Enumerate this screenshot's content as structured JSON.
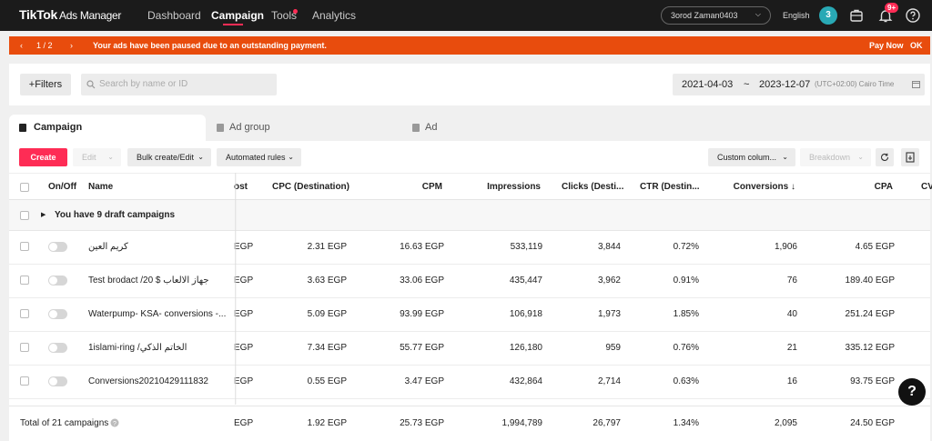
{
  "nav": {
    "logo": "TikTok",
    "logo_sub": "Ads Manager",
    "links": [
      "Dashboard",
      "Campaign",
      "Tools",
      "Analytics"
    ],
    "account": "3orod Zaman0403",
    "language": "English",
    "avatar_initial": "3",
    "notification_badge": "9+"
  },
  "alert": {
    "pager": "1 / 2",
    "message": "Your ads have been paused due to an outstanding payment.",
    "pay_now": "Pay Now",
    "ok": "OK"
  },
  "filterbar": {
    "filters_label": "Filters",
    "search_placeholder": "Search by name or ID",
    "date_start": "2021-04-03",
    "date_sep": "~",
    "date_end": "2023-12-07",
    "timezone": "(UTC+02:00) Cairo Time"
  },
  "tabs": [
    "Campaign",
    "Ad group",
    "Ad"
  ],
  "toolbar": {
    "create": "Create",
    "edit": "Edit",
    "bulk": "Bulk create/Edit",
    "automated": "Automated rules",
    "custom_columns": "Custom colum...",
    "breakdown": "Breakdown"
  },
  "table": {
    "headers": {
      "onoff": "On/Off",
      "name": "Name",
      "cost": "ost",
      "cpc": "CPC (Destination)",
      "cpm": "CPM",
      "impressions": "Impressions",
      "clicks": "Clicks (Desti...",
      "ctr": "CTR (Destin...",
      "conversions": "Conversions ↓",
      "cpa": "CPA",
      "cv": "CV"
    },
    "draft_text": "You have 9 draft campaigns",
    "rows": [
      {
        "name": "كريم العين",
        "cost": "EGP",
        "cpc": "2.31 EGP",
        "cpm": "16.63 EGP",
        "impressions": "533,119",
        "clicks": "3,844",
        "ctr": "0.72%",
        "conversions": "1,906",
        "cpa": "4.65 EGP"
      },
      {
        "name": "Test brodact /20 $ جهاز الالعاب",
        "cost": "EGP",
        "cpc": "3.63 EGP",
        "cpm": "33.06 EGP",
        "impressions": "435,447",
        "clicks": "3,962",
        "ctr": "0.91%",
        "conversions": "76",
        "cpa": "189.40 EGP"
      },
      {
        "name": "Waterpump- KSA- conversions -...",
        "cost": "EGP",
        "cpc": "5.09 EGP",
        "cpm": "93.99 EGP",
        "impressions": "106,918",
        "clicks": "1,973",
        "ctr": "1.85%",
        "conversions": "40",
        "cpa": "251.24 EGP"
      },
      {
        "name": "1islami-ring /الخاتم الذكي",
        "cost": "EGP",
        "cpc": "7.34 EGP",
        "cpm": "55.77 EGP",
        "impressions": "126,180",
        "clicks": "959",
        "ctr": "0.76%",
        "conversions": "21",
        "cpa": "335.12 EGP"
      },
      {
        "name": "Conversions20210429111832",
        "cost": "EGP",
        "cpc": "0.55 EGP",
        "cpm": "3.47 EGP",
        "impressions": "432,864",
        "clicks": "2,714",
        "ctr": "0.63%",
        "conversions": "16",
        "cpa": "93.75 EGP"
      }
    ],
    "total": {
      "label": "Total of 21 campaigns",
      "cost": "EGP",
      "cpc": "1.92 EGP",
      "cpm": "25.73 EGP",
      "impressions": "1,994,789",
      "clicks": "26,797",
      "ctr": "1.34%",
      "conversions": "2,095",
      "cpa": "24.50 EGP"
    }
  },
  "help": "?",
  "colors": {
    "accent": "#fe2c55",
    "alert": "#e84c0d",
    "nav_bg": "#1b1b1b"
  }
}
